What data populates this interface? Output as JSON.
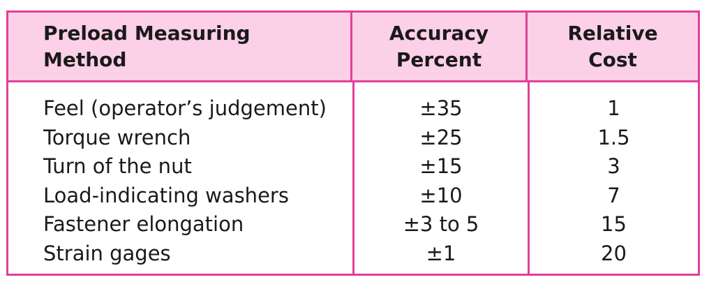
{
  "table": {
    "headers": {
      "method": "Preload Measuring\nMethod",
      "accuracy": "Accuracy\nPercent",
      "cost": "Relative\nCost"
    },
    "rows": [
      {
        "method": "Feel (operator’s judgement)",
        "accuracy": "±35",
        "cost": "1"
      },
      {
        "method": "Torque wrench",
        "accuracy": "±25",
        "cost": "1.5"
      },
      {
        "method": "Turn of the nut",
        "accuracy": "±15",
        "cost": "3"
      },
      {
        "method": "Load-indicating washers",
        "accuracy": "±10",
        "cost": "7"
      },
      {
        "method": "Fastener elongation",
        "accuracy": "±3 to 5",
        "cost": "15"
      },
      {
        "method": "Strain gages",
        "accuracy": "±1",
        "cost": "20"
      }
    ],
    "colors": {
      "border": "#e0409a",
      "header_background": "#fcd0e6"
    }
  }
}
